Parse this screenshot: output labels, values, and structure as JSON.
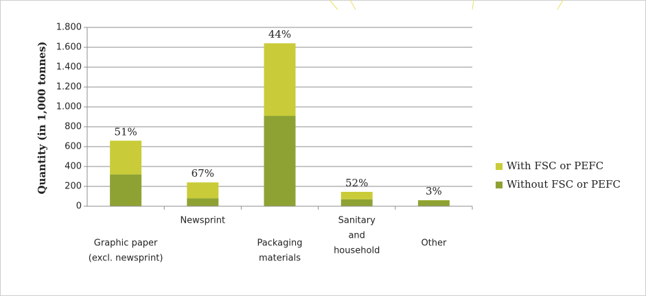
{
  "chart_data": {
    "type": "stacked_bar",
    "y_label": "Quantity (in 1,000 tonnes)",
    "categories": [
      [
        "Graphic paper",
        "(excl. newsprint)"
      ],
      [
        "Newsprint"
      ],
      [
        "Packaging",
        "materials"
      ],
      [
        "Sanitary",
        "and",
        "household"
      ],
      [
        "Other"
      ]
    ],
    "series": [
      {
        "name": "Without FSC or PEFC",
        "color": "#8ea234",
        "values": [
          320,
          80,
          910,
          70,
          60
        ]
      },
      {
        "name": "With FSC or PEFC",
        "color": "#c9cc38",
        "values": [
          340,
          160,
          730,
          75,
          2
        ]
      }
    ],
    "annotations": [
      "51%",
      "67%",
      "44%",
      "52%",
      "3%"
    ],
    "ylim": [
      0,
      1800
    ],
    "yticks": [
      0,
      200,
      400,
      600,
      800,
      {
        "value": 1000,
        "label": "1.000"
      },
      {
        "value": 1200,
        "label": "1.200"
      },
      {
        "value": 1400,
        "label": "1.400"
      },
      {
        "value": 1600,
        "label": "1.600"
      },
      {
        "value": 1800,
        "label": "1.800"
      }
    ],
    "grid": true
  }
}
